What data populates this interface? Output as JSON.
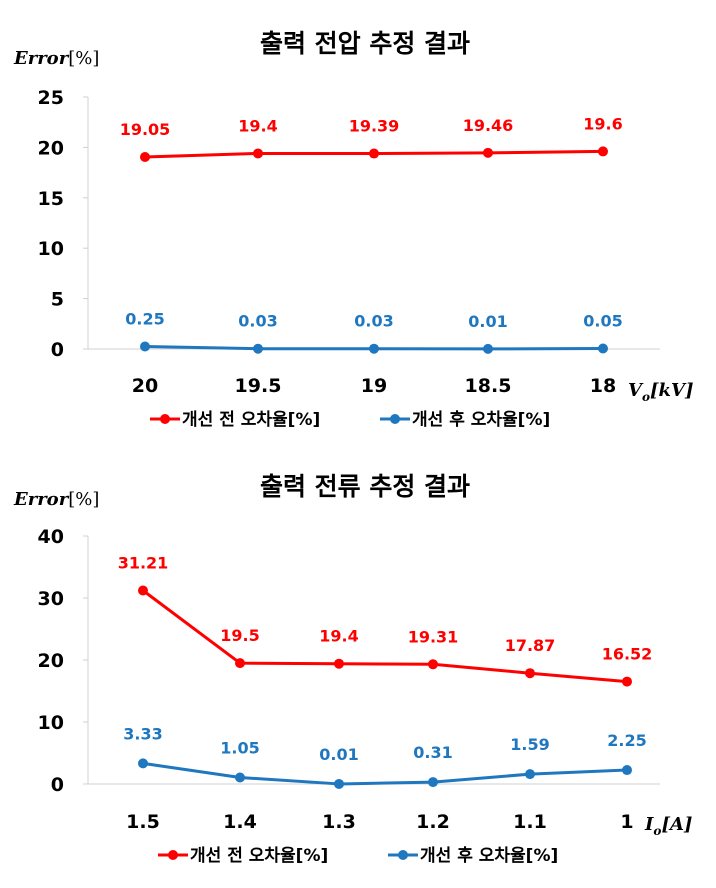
{
  "chart_data": [
    {
      "type": "line",
      "title": "출력 전압 추정 결과",
      "ylabel": "Error",
      "ylabel_unit": "[%]",
      "xlabel_main": "V",
      "xlabel_sub": "o",
      "xlabel_unit": "[kV]",
      "categories": [
        "20",
        "19.5",
        "19",
        "18.5",
        "18"
      ],
      "ylim": [
        0,
        25
      ],
      "yticks": [
        "0",
        "5",
        "10",
        "15",
        "20",
        "25"
      ],
      "series": [
        {
          "name": "개선 전 오차율[%]",
          "color": "#ff0000",
          "values": [
            19.05,
            19.4,
            19.39,
            19.46,
            19.6
          ],
          "labels": [
            "19.05",
            "19.4",
            "19.39",
            "19.46",
            "19.6"
          ]
        },
        {
          "name": "개선 후 오차율[%]",
          "color": "#1f77c0",
          "values": [
            0.25,
            0.03,
            0.03,
            0.01,
            0.05
          ],
          "labels": [
            "0.25",
            "0.03",
            "0.03",
            "0.01",
            "0.05"
          ]
        }
      ]
    },
    {
      "type": "line",
      "title": "출력 전류 추정 결과",
      "ylabel": "Error",
      "ylabel_unit": "[%]",
      "xlabel_main": "I",
      "xlabel_sub": "o",
      "xlabel_unit": "[A]",
      "categories": [
        "1.5",
        "1.4",
        "1.3",
        "1.2",
        "1.1",
        "1"
      ],
      "ylim": [
        0,
        40
      ],
      "yticks": [
        "0",
        "10",
        "20",
        "30",
        "40"
      ],
      "series": [
        {
          "name": "개선 전 오차율[%]",
          "color": "#ff0000",
          "values": [
            31.21,
            19.5,
            19.4,
            19.31,
            17.87,
            16.52
          ],
          "labels": [
            "31.21",
            "19.5",
            "19.4",
            "19.31",
            "17.87",
            "16.52"
          ]
        },
        {
          "name": "개선 후 오차율[%]",
          "color": "#1f77c0",
          "values": [
            3.33,
            1.05,
            0.01,
            0.31,
            1.59,
            2.25
          ],
          "labels": [
            "3.33",
            "1.05",
            "0.01",
            "0.31",
            "1.59",
            "2.25"
          ]
        }
      ]
    }
  ]
}
